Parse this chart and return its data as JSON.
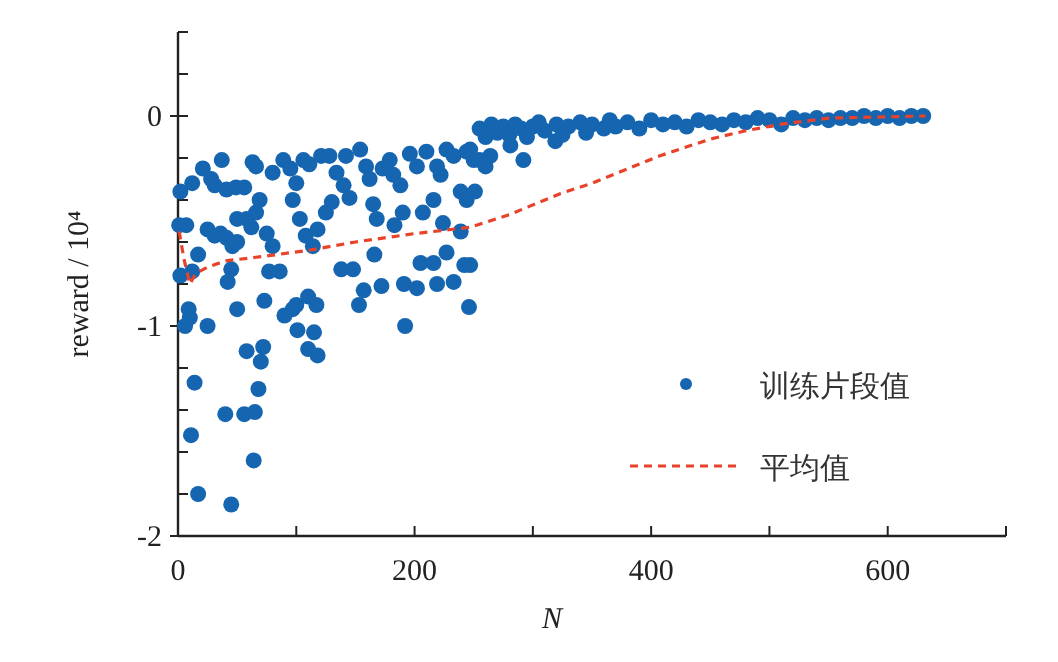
{
  "chart_data": {
    "type": "scatter",
    "xlabel": "N",
    "ylabel": "reward / 10⁴",
    "xlim": [
      0,
      700
    ],
    "xticks": [
      0,
      {
        "value": 100,
        "label": null
      },
      200,
      {
        "value": 300,
        "label": null
      },
      400,
      {
        "value": 500,
        "label": null
      },
      600,
      {
        "value": 700,
        "label": null
      }
    ],
    "ylim": [
      -2,
      0.4
    ],
    "yticks": [
      -2,
      {
        "value": -1.8,
        "label": null
      },
      {
        "value": -1.6,
        "label": null
      },
      {
        "value": -1.4,
        "label": null
      },
      {
        "value": -1.2,
        "label": null
      },
      -1,
      {
        "value": -0.8,
        "label": null
      },
      {
        "value": -0.6,
        "label": null
      },
      {
        "value": -0.4,
        "label": null
      },
      {
        "value": -0.2,
        "label": null
      },
      0,
      {
        "value": 0.2,
        "label": null
      },
      {
        "value": 0.4,
        "label": null
      }
    ],
    "grid": false,
    "legend": "bottom right",
    "series": [
      {
        "name": "训练片段值",
        "type": "scatter",
        "color": "#1565b0",
        "marker": "circle",
        "x": [
          17,
          45,
          11,
          14,
          40,
          56,
          65,
          64,
          68,
          70,
          72,
          58,
          25,
          6,
          10,
          9,
          50,
          73,
          90,
          100,
          97,
          101,
          110,
          117,
          110,
          118,
          115,
          153,
          157,
          192,
          246,
          172,
          191,
          202,
          219,
          233,
          242,
          247,
          2,
          1,
          7,
          2,
          12,
          17,
          12,
          21,
          28,
          31,
          37,
          41,
          49,
          56,
          63,
          66,
          25,
          31,
          36,
          41,
          46,
          50,
          45,
          42,
          50,
          58,
          66,
          69,
          62,
          75,
          80,
          77,
          86,
          80,
          89,
          95,
          100,
          97,
          103,
          106,
          111,
          108,
          114,
          118,
          125,
          130,
          121,
          128,
          134,
          140,
          142,
          145,
          138,
          148,
          154,
          159,
          162,
          165,
          168,
          166,
          173,
          179,
          182,
          188,
          183,
          190,
          196,
          202,
          210,
          219,
          207,
          216,
          222,
          227,
          233,
          239,
          224,
          239,
          244,
          251,
          244,
          250,
          205,
          216,
          227,
          264,
          255,
          292,
          281,
          319,
          260,
          247,
          255,
          260,
          265,
          270,
          275,
          280,
          285,
          290,
          295,
          300,
          305,
          310,
          320,
          325,
          330,
          340,
          345,
          350,
          360,
          365,
          370,
          380,
          390,
          400,
          410,
          420,
          430,
          440,
          450,
          460,
          470,
          480,
          490,
          500,
          510,
          520,
          530,
          540,
          550,
          560,
          570,
          580,
          590,
          600,
          610,
          620,
          630
        ],
        "values": [
          -1.8,
          -1.85,
          -1.52,
          -1.27,
          -1.42,
          -1.42,
          -1.41,
          -1.64,
          -1.3,
          -1.17,
          -1.1,
          -1.12,
          -1.0,
          -1.0,
          -0.96,
          -0.92,
          -0.92,
          -0.88,
          -0.95,
          -0.9,
          -0.92,
          -1.02,
          -0.86,
          -0.9,
          -1.11,
          -1.14,
          -1.03,
          -0.9,
          -0.83,
          -1.0,
          -0.91,
          -0.81,
          -0.8,
          -0.82,
          -0.8,
          -0.79,
          -0.71,
          -0.71,
          -0.36,
          -0.52,
          -0.52,
          -0.76,
          -0.74,
          -0.66,
          -0.32,
          -0.25,
          -0.3,
          -0.33,
          -0.21,
          -0.35,
          -0.34,
          -0.34,
          -0.22,
          -0.24,
          -0.54,
          -0.57,
          -0.56,
          -0.58,
          -0.62,
          -0.6,
          -0.73,
          -0.79,
          -0.49,
          -0.49,
          -0.46,
          -0.4,
          -0.53,
          -0.56,
          -0.62,
          -0.74,
          -0.74,
          -0.27,
          -0.21,
          -0.25,
          -0.32,
          -0.4,
          -0.49,
          -0.21,
          -0.23,
          -0.57,
          -0.62,
          -0.54,
          -0.46,
          -0.41,
          -0.19,
          -0.19,
          -0.27,
          -0.33,
          -0.19,
          -0.39,
          -0.73,
          -0.73,
          -0.16,
          -0.24,
          -0.3,
          -0.42,
          -0.49,
          -0.66,
          -0.25,
          -0.21,
          -0.28,
          -0.33,
          -0.52,
          -0.46,
          -0.18,
          -0.24,
          -0.17,
          -0.24,
          -0.46,
          -0.4,
          -0.28,
          -0.16,
          -0.19,
          -0.36,
          -0.51,
          -0.55,
          -0.4,
          -0.36,
          -0.17,
          -0.21,
          -0.7,
          -0.7,
          -0.65,
          -0.19,
          -0.21,
          -0.21,
          -0.14,
          -0.12,
          -0.24,
          -0.16,
          -0.06,
          -0.1,
          -0.04,
          -0.08,
          -0.05,
          -0.09,
          -0.04,
          -0.06,
          -0.1,
          -0.05,
          -0.03,
          -0.07,
          -0.04,
          -0.09,
          -0.05,
          -0.03,
          -0.08,
          -0.04,
          -0.06,
          -0.02,
          -0.05,
          -0.03,
          -0.06,
          -0.02,
          -0.04,
          -0.03,
          -0.05,
          -0.02,
          -0.03,
          -0.04,
          -0.02,
          -0.03,
          -0.01,
          -0.02,
          -0.04,
          -0.01,
          -0.02,
          -0.01,
          -0.02,
          -0.01,
          -0.01,
          0,
          -0.01,
          0,
          -0.01,
          0,
          0
        ]
      },
      {
        "name": "平均值",
        "type": "line",
        "color": "#e8432a",
        "line_style": "dashed",
        "marker": "none",
        "x": [
          1,
          5,
          10,
          15,
          25,
          40,
          70,
          110,
          150,
          200,
          247,
          280,
          323,
          350,
          407,
          450,
          480,
          509,
          550,
          632
        ],
        "values": [
          -0.55,
          -0.68,
          -0.8,
          -0.75,
          -0.72,
          -0.69,
          -0.67,
          -0.64,
          -0.6,
          -0.56,
          -0.53,
          -0.47,
          -0.37,
          -0.32,
          -0.19,
          -0.11,
          -0.07,
          -0.04,
          -0.01,
          0
        ]
      }
    ]
  }
}
